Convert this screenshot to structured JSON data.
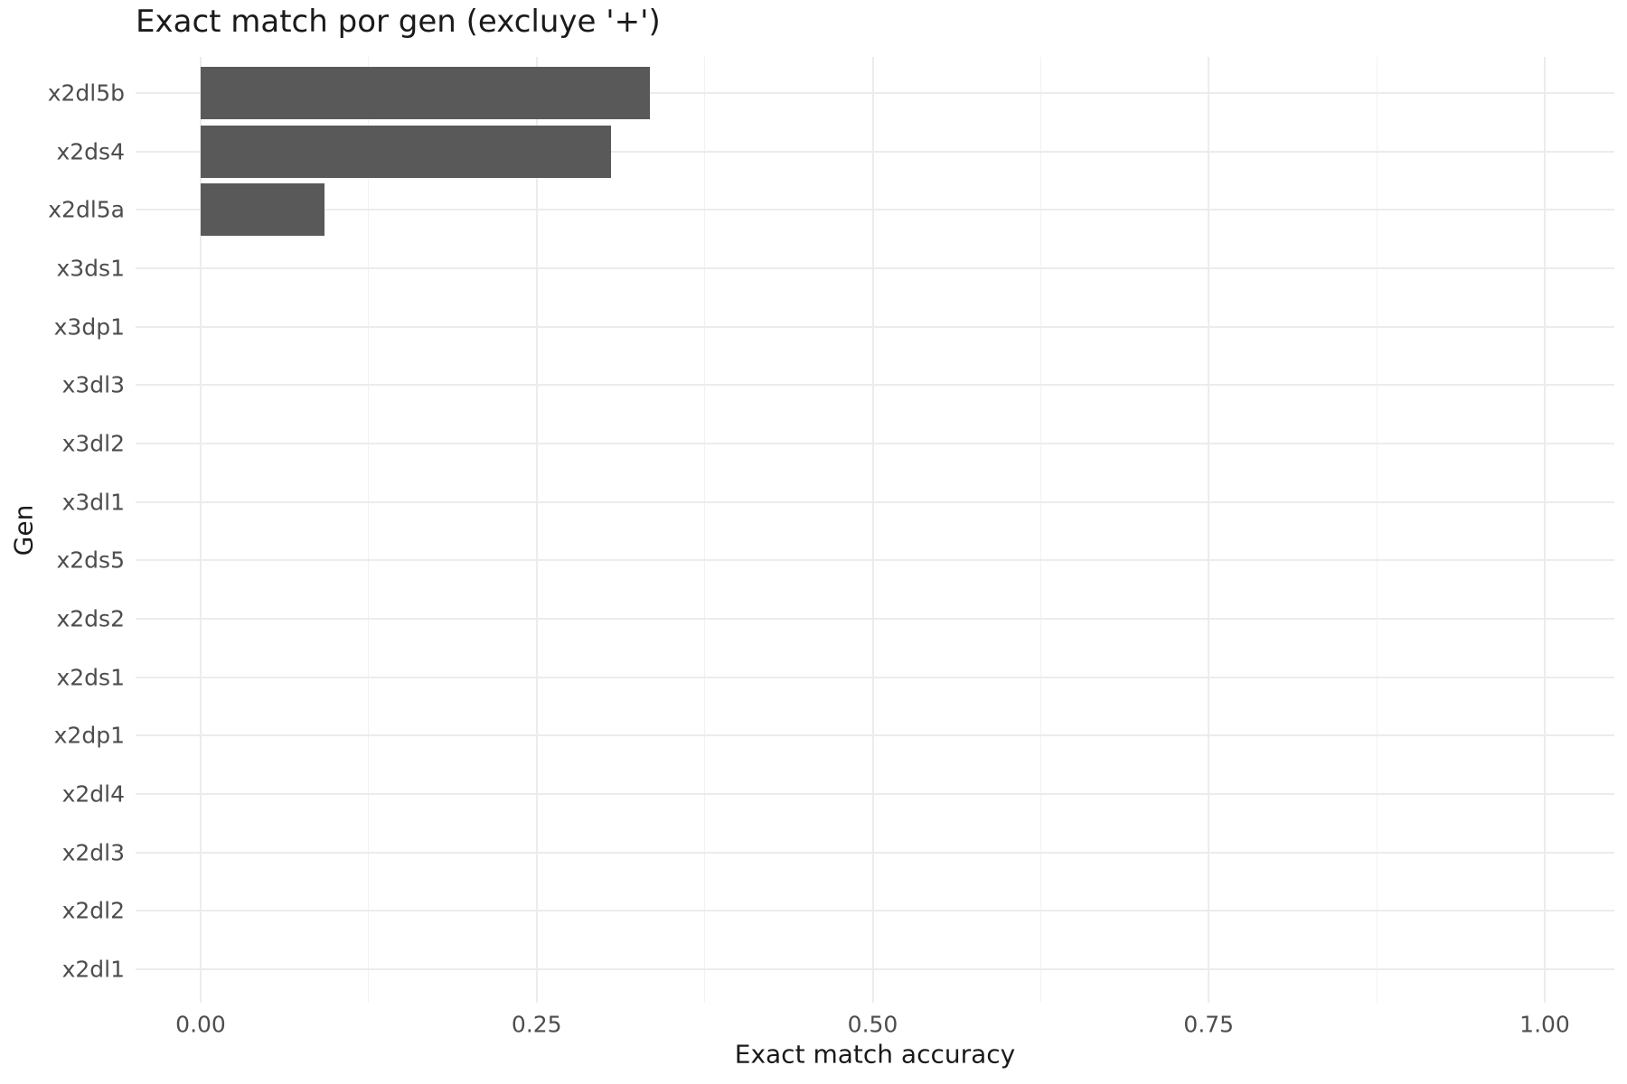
{
  "title": "Exact match por gen (excluye '+')",
  "chart_data": {
    "type": "bar",
    "orientation": "horizontal",
    "title": "Exact match por gen (excluye '+')",
    "xlabel": "Exact match accuracy",
    "ylabel": "Gen",
    "categories": [
      "x2dl5b",
      "x2ds4",
      "x2dl5a",
      "x3ds1",
      "x3dp1",
      "x3dl3",
      "x3dl2",
      "x3dl1",
      "x2ds5",
      "x2ds2",
      "x2ds1",
      "x2dp1",
      "x2dl4",
      "x2dl3",
      "x2dl2",
      "x2dl1"
    ],
    "values": [
      0.334,
      0.305,
      0.092,
      0,
      0,
      0,
      0,
      0,
      0,
      0,
      0,
      0,
      0,
      0,
      0,
      0
    ],
    "xlim": [
      0,
      1
    ],
    "x_tick_labels": [
      "0.00",
      "0.25",
      "0.50",
      "0.75",
      "1.00"
    ],
    "x_tick_values": [
      0,
      0.25,
      0.5,
      0.75,
      1.0
    ],
    "x_minor_tick_values": [
      0.125,
      0.375,
      0.625,
      0.875
    ],
    "grid": "on",
    "legend_position": "none",
    "colors": {
      "bar_fill": "#595959",
      "grid_major": "#ececec",
      "grid_minor": "#f2f2f2",
      "tick_label": "#4d4d4d",
      "title_text": "#1a1a1a",
      "background": "#ffffff"
    }
  }
}
